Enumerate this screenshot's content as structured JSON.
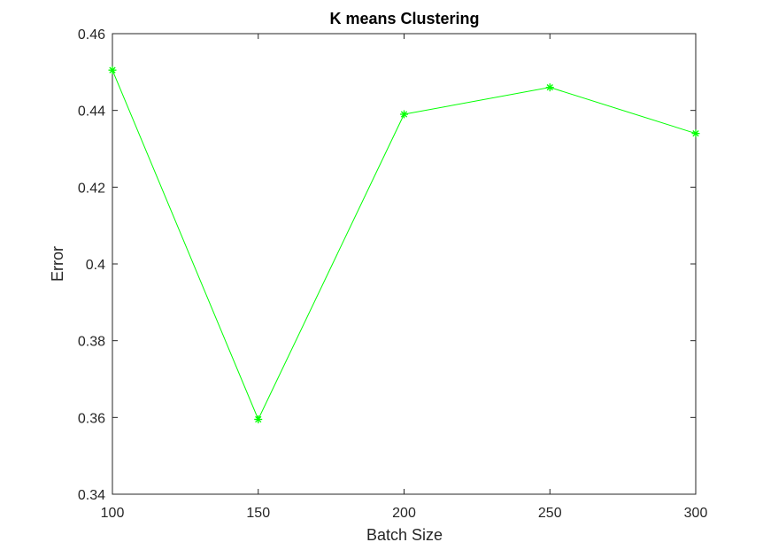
{
  "chart_data": {
    "type": "line",
    "title": "K means Clustering",
    "xlabel": "Batch Size",
    "ylabel": "Error",
    "xlim": [
      100,
      300
    ],
    "ylim": [
      0.34,
      0.46
    ],
    "xticks": [
      "100",
      "150",
      "200",
      "250",
      "300"
    ],
    "yticks": [
      "0.34",
      "0.36",
      "0.38",
      "0.4",
      "0.42",
      "0.44",
      "0.46"
    ],
    "grid": false,
    "series": [
      {
        "color": "#00ff00",
        "marker": "asterisk",
        "x": [
          100,
          150,
          200,
          250,
          300
        ],
        "y": [
          0.4505,
          0.3595,
          0.439,
          0.446,
          0.434
        ]
      }
    ]
  }
}
